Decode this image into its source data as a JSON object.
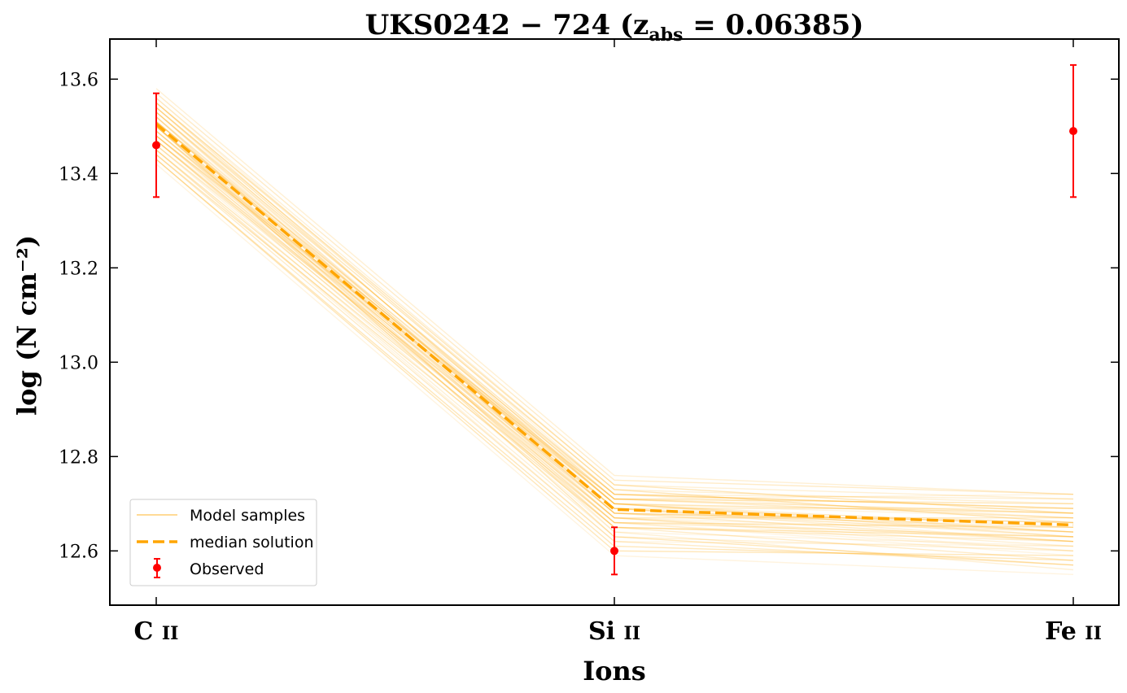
{
  "chart_data": {
    "type": "line",
    "title": "UKS0242 − 724 (z_abs = 0.06385)",
    "title_parts": {
      "main": "UKS0242 − 724 (z",
      "sub": "abs",
      "tail": " = 0.06385)"
    },
    "xlabel": "Ions",
    "ylabel": "log (N cm⁻²)",
    "categories": [
      "C II",
      "Si II",
      "Fe II"
    ],
    "category_parts": [
      {
        "el": "C",
        "ion": "II"
      },
      {
        "el": "Si",
        "ion": "II"
      },
      {
        "el": "Fe",
        "ion": "II"
      }
    ],
    "ylim": [
      12.485,
      13.685
    ],
    "yticks": [
      12.6,
      12.8,
      13.0,
      13.2,
      13.4,
      13.6
    ],
    "series": [
      {
        "name": "Model samples",
        "color": "#ffa500",
        "style": "thin translucent lines",
        "samples": [
          [
            13.51,
            12.69,
            12.66
          ],
          [
            13.55,
            12.73,
            12.7
          ],
          [
            13.47,
            12.65,
            12.62
          ],
          [
            13.53,
            12.72,
            12.69
          ],
          [
            13.49,
            12.67,
            12.64
          ],
          [
            13.45,
            12.63,
            12.6
          ],
          [
            13.57,
            12.75,
            12.72
          ],
          [
            13.43,
            12.61,
            12.58
          ],
          [
            13.52,
            12.7,
            12.67
          ],
          [
            13.5,
            12.68,
            12.65
          ],
          [
            13.48,
            12.66,
            12.63
          ],
          [
            13.54,
            12.71,
            12.68
          ],
          [
            13.46,
            12.64,
            12.61
          ],
          [
            13.56,
            12.74,
            12.71
          ],
          [
            13.44,
            12.62,
            12.57
          ],
          [
            13.51,
            12.7,
            12.64
          ],
          [
            13.49,
            12.68,
            12.66
          ],
          [
            13.53,
            12.69,
            12.62
          ],
          [
            13.47,
            12.67,
            12.67
          ],
          [
            13.5,
            12.71,
            12.7
          ],
          [
            13.52,
            12.66,
            12.59
          ],
          [
            13.48,
            12.72,
            12.71
          ],
          [
            13.55,
            12.7,
            12.63
          ],
          [
            13.45,
            12.66,
            12.65
          ],
          [
            13.42,
            12.59,
            12.55
          ],
          [
            13.58,
            12.76,
            12.72
          ],
          [
            13.51,
            12.68,
            12.62
          ],
          [
            13.49,
            12.7,
            12.68
          ],
          [
            13.53,
            12.67,
            12.6
          ],
          [
            13.46,
            12.69,
            12.69
          ],
          [
            13.5,
            12.65,
            12.58
          ],
          [
            13.54,
            12.73,
            12.66
          ],
          [
            13.47,
            12.71,
            12.72
          ],
          [
            13.52,
            12.64,
            12.56
          ],
          [
            13.48,
            12.69,
            12.64
          ],
          [
            13.44,
            12.65,
            12.63
          ],
          [
            13.56,
            12.72,
            12.67
          ],
          [
            13.5,
            12.67,
            12.61
          ],
          [
            13.51,
            12.72,
            12.69
          ],
          [
            13.43,
            12.6,
            12.59
          ],
          [
            13.49,
            12.66,
            12.6
          ],
          [
            13.53,
            12.7,
            12.65
          ],
          [
            13.47,
            12.68,
            12.66
          ],
          [
            13.55,
            12.74,
            12.68
          ],
          [
            13.45,
            12.62,
            12.61
          ],
          [
            13.52,
            12.69,
            12.63
          ],
          [
            13.48,
            12.71,
            12.67
          ],
          [
            13.5,
            12.63,
            12.57
          ],
          [
            13.54,
            12.68,
            12.64
          ],
          [
            13.46,
            12.67,
            12.62
          ]
        ]
      },
      {
        "name": "median solution",
        "color": "#ffa500",
        "style": "dashed",
        "values": [
          13.505,
          12.688,
          12.655
        ]
      },
      {
        "name": "Observed",
        "color": "#ff0000",
        "style": "points with error bars",
        "values": [
          13.46,
          12.6,
          13.49
        ],
        "err_low": [
          0.11,
          0.05,
          0.14
        ],
        "err_high": [
          0.11,
          0.05,
          0.14
        ]
      }
    ],
    "legend_position": "lower-left",
    "grid": false
  }
}
